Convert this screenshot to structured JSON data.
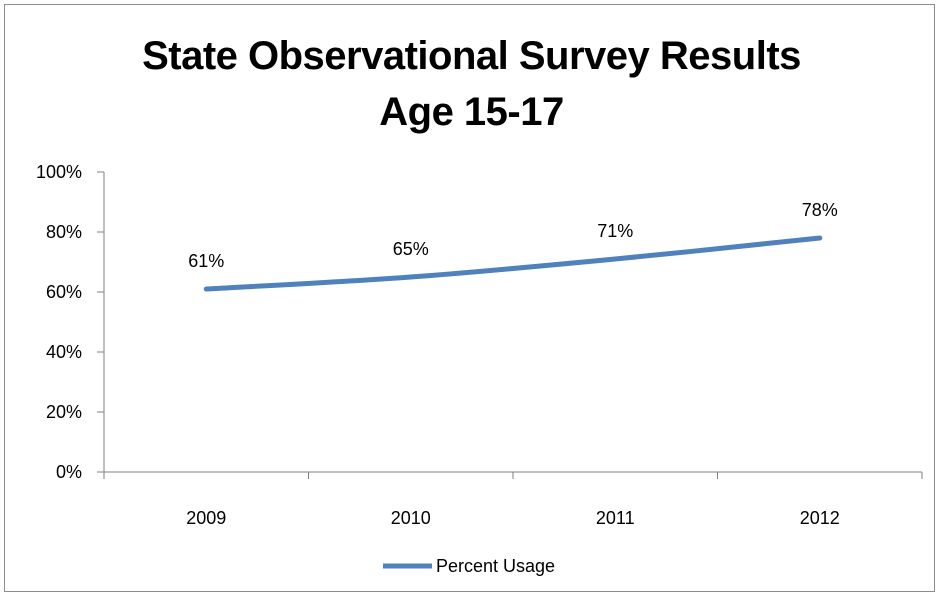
{
  "chart_data": {
    "type": "line",
    "title": "State Observational Survey Results",
    "subtitle": "Age 15-17",
    "categories": [
      "2009",
      "2010",
      "2011",
      "2012"
    ],
    "series": [
      {
        "name": "Percent Usage",
        "values": [
          61,
          65,
          71,
          78
        ],
        "color": "#4f81bd"
      }
    ],
    "data_labels": [
      "61%",
      "65%",
      "71%",
      "78%"
    ],
    "y_ticks": [
      "0%",
      "20%",
      "40%",
      "60%",
      "80%",
      "100%"
    ],
    "ylim": [
      0,
      100
    ],
    "grid": false,
    "legend_position": "bottom"
  }
}
